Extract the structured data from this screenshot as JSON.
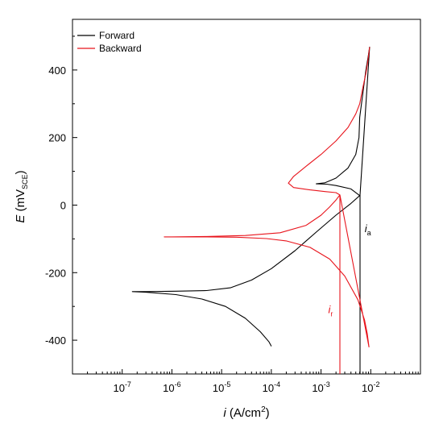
{
  "chart_data": {
    "type": "line",
    "xscale": "log",
    "xlim": [
      1e-08,
      0.1
    ],
    "ylim": [
      -500,
      550
    ],
    "x_ticks": [
      {
        "base": "10",
        "exp": "-7"
      },
      {
        "base": "10",
        "exp": "-6"
      },
      {
        "base": "10",
        "exp": "-5"
      },
      {
        "base": "10",
        "exp": "-4"
      },
      {
        "base": "10",
        "exp": "-3"
      },
      {
        "base": "10",
        "exp": "-2"
      }
    ],
    "y_ticks": [
      "-400",
      "-200",
      "0",
      "200",
      "400"
    ],
    "xlabel": {
      "var": "i",
      "text": " (A/cm",
      "sup": "2",
      "close": ")"
    },
    "ylabel": {
      "var": "E",
      "text": " (mV",
      "sub": "SCE",
      "close": ")"
    },
    "legend": {
      "position": "top-left"
    },
    "annotations": [
      {
        "id": "ia",
        "var": "i",
        "sub": "a",
        "color": "#000000",
        "x": 0.0065,
        "y": -80
      },
      {
        "id": "ir",
        "var": "i",
        "sub": "r",
        "color": "#e8141c",
        "x": 0.0012,
        "y": -320
      }
    ],
    "series": [
      {
        "name": "Forward",
        "color": "#000000",
        "points": [
          [
            0.0001,
            -418
          ],
          [
            9e-05,
            -405
          ],
          [
            6e-05,
            -375
          ],
          [
            3e-05,
            -335
          ],
          [
            1.2e-05,
            -300
          ],
          [
            4e-06,
            -278
          ],
          [
            1.2e-06,
            -265
          ],
          [
            3e-07,
            -258
          ],
          [
            1.6e-07,
            -256
          ],
          [
            3e-07,
            -256
          ],
          [
            1.2e-06,
            -255
          ],
          [
            5e-06,
            -253
          ],
          [
            1.5e-05,
            -245
          ],
          [
            4e-05,
            -222
          ],
          [
            0.0001,
            -188
          ],
          [
            0.0003,
            -135
          ],
          [
            0.0008,
            -80
          ],
          [
            0.002,
            -30
          ],
          [
            0.004,
            5
          ],
          [
            0.006,
            28
          ],
          [
            0.004,
            48
          ],
          [
            0.002,
            58
          ],
          [
            0.0013,
            62
          ],
          [
            0.0008,
            63
          ],
          [
            0.0012,
            66
          ],
          [
            0.002,
            80
          ],
          [
            0.0035,
            110
          ],
          [
            0.005,
            150
          ],
          [
            0.0058,
            200
          ],
          [
            0.006,
            260
          ],
          [
            0.0068,
            320
          ],
          [
            0.0072,
            350
          ],
          [
            0.008,
            400
          ],
          [
            0.009,
            445
          ],
          [
            0.0095,
            468
          ],
          [
            0.0061,
            30
          ],
          [
            0.0061,
            -500
          ]
        ]
      },
      {
        "name": "Backward",
        "color": "#e8141c",
        "points": [
          [
            0.0095,
            468
          ],
          [
            0.0088,
            430
          ],
          [
            0.008,
            390
          ],
          [
            0.007,
            350
          ],
          [
            0.006,
            300
          ],
          [
            0.005,
            270
          ],
          [
            0.0035,
            230
          ],
          [
            0.002,
            190
          ],
          [
            0.001,
            150
          ],
          [
            0.0005,
            115
          ],
          [
            0.00028,
            85
          ],
          [
            0.00022,
            65
          ],
          [
            0.00028,
            52
          ],
          [
            0.0006,
            45
          ],
          [
            0.0012,
            40
          ],
          [
            0.002,
            37
          ],
          [
            0.0024,
            30
          ],
          [
            0.002,
            15
          ],
          [
            0.0015,
            -5
          ],
          [
            0.001,
            -30
          ],
          [
            0.0005,
            -60
          ],
          [
            0.00015,
            -82
          ],
          [
            3e-05,
            -90
          ],
          [
            5e-06,
            -93
          ],
          [
            1e-06,
            -94
          ],
          [
            7e-07,
            -94
          ],
          [
            1e-06,
            -94
          ],
          [
            5e-06,
            -94
          ],
          [
            2e-05,
            -95
          ],
          [
            8e-05,
            -99
          ],
          [
            0.0002,
            -106
          ],
          [
            0.0006,
            -125
          ],
          [
            0.0015,
            -160
          ],
          [
            0.003,
            -210
          ],
          [
            0.0055,
            -280
          ],
          [
            0.0075,
            -340
          ],
          [
            0.0085,
            -380
          ],
          [
            0.0092,
            -420
          ],
          [
            0.0024,
            30
          ],
          [
            0.0024,
            -500
          ]
        ]
      }
    ]
  }
}
